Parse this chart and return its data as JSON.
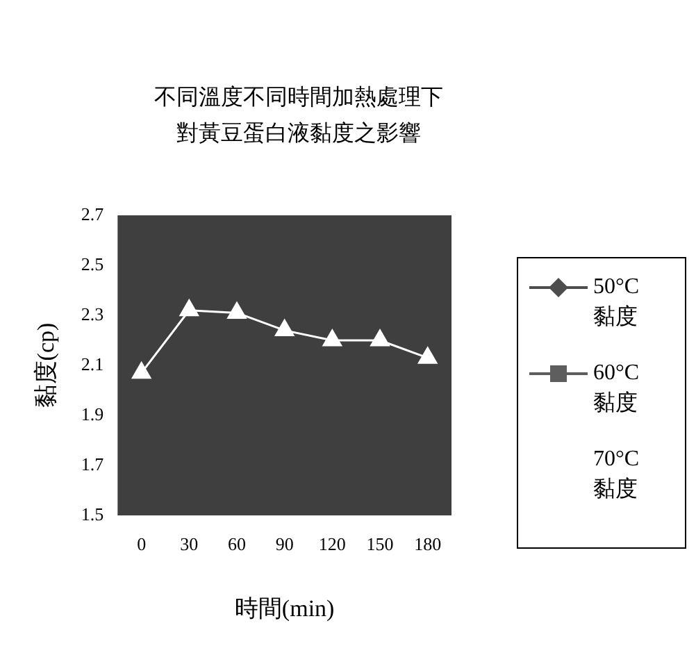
{
  "chart_data": {
    "type": "line",
    "title": "不同溫度不同時間加熱處理下對黃豆蛋白液黏度之影響",
    "xlabel": "時間(min)",
    "ylabel": "黏度(cp)",
    "categories": [
      "0",
      "30",
      "60",
      "90",
      "120",
      "150",
      "180"
    ],
    "series": [
      {
        "name": "50°C 黏度",
        "color": "#4d4d4d",
        "marker": "diamond",
        "values": [
          null,
          null,
          null,
          null,
          null,
          null,
          null
        ]
      },
      {
        "name": "60°C 黏度",
        "color": "#5e5e5e",
        "marker": "square",
        "values": [
          null,
          null,
          null,
          null,
          null,
          null,
          null
        ]
      },
      {
        "name": "70°C 黏度",
        "color": "#ffffff",
        "marker": "triangle",
        "values": [
          2.07,
          2.32,
          2.31,
          2.24,
          2.2,
          2.2,
          2.13
        ]
      }
    ],
    "ylim": [
      1.5,
      2.7
    ],
    "yticks": [
      1.5,
      1.7,
      1.9,
      2.1,
      2.3,
      2.5,
      2.7
    ],
    "grid": false,
    "legend": "right",
    "line_style": "solid"
  }
}
